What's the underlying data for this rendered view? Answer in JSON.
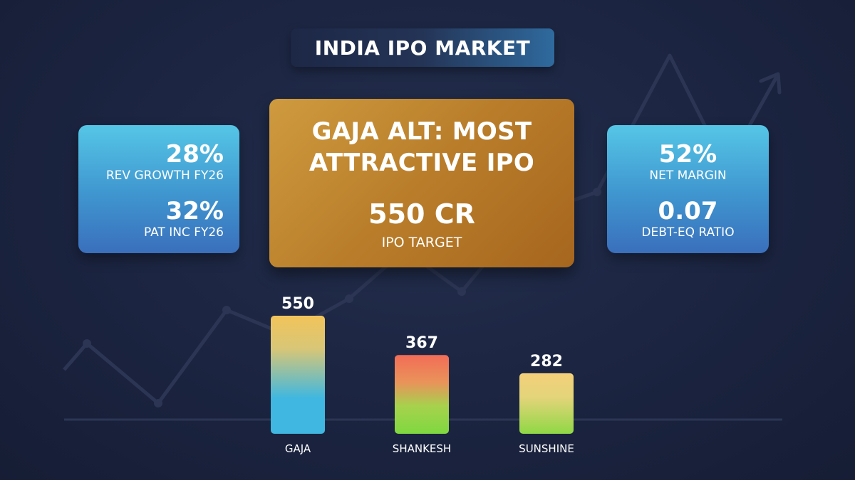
{
  "title": "INDIA IPO MARKET",
  "left_card": {
    "stats": [
      {
        "value": "28%",
        "label": "REV GROWTH FY26"
      },
      {
        "value": "32%",
        "label": "PAT INC FY26"
      }
    ]
  },
  "main_card": {
    "headline_line1": "GAJA ALT: MOST",
    "headline_line2": "ATTRACTIVE IPO",
    "value": "550 CR",
    "sub": "IPO TARGET"
  },
  "right_card": {
    "stats": [
      {
        "value": "52%",
        "label": "NET MARGIN"
      },
      {
        "value": "0.07",
        "label": "DEBT-EQ RATIO"
      }
    ]
  },
  "colors": {
    "background": "#1b2440",
    "card_blue": "#3f95cf",
    "card_gold": "#b97d2a",
    "gaja_top": "#f2c45a",
    "gaja_bottom": "#3fb7e0",
    "shankesh_top": "#f26d57",
    "shankesh_bottom": "#7fd840",
    "sunshine_top": "#f4d07a",
    "sunshine_bottom": "#8fd845"
  },
  "chart_data": {
    "type": "bar",
    "categories": [
      "GAJA",
      "SHANKESH",
      "SUNSHINE"
    ],
    "values": [
      550,
      367,
      282
    ],
    "title": "",
    "xlabel": "",
    "ylabel": "",
    "ylim": [
      0,
      550
    ],
    "grid": false,
    "legend": "none",
    "data_labels": [
      "550",
      "367",
      "282"
    ]
  }
}
